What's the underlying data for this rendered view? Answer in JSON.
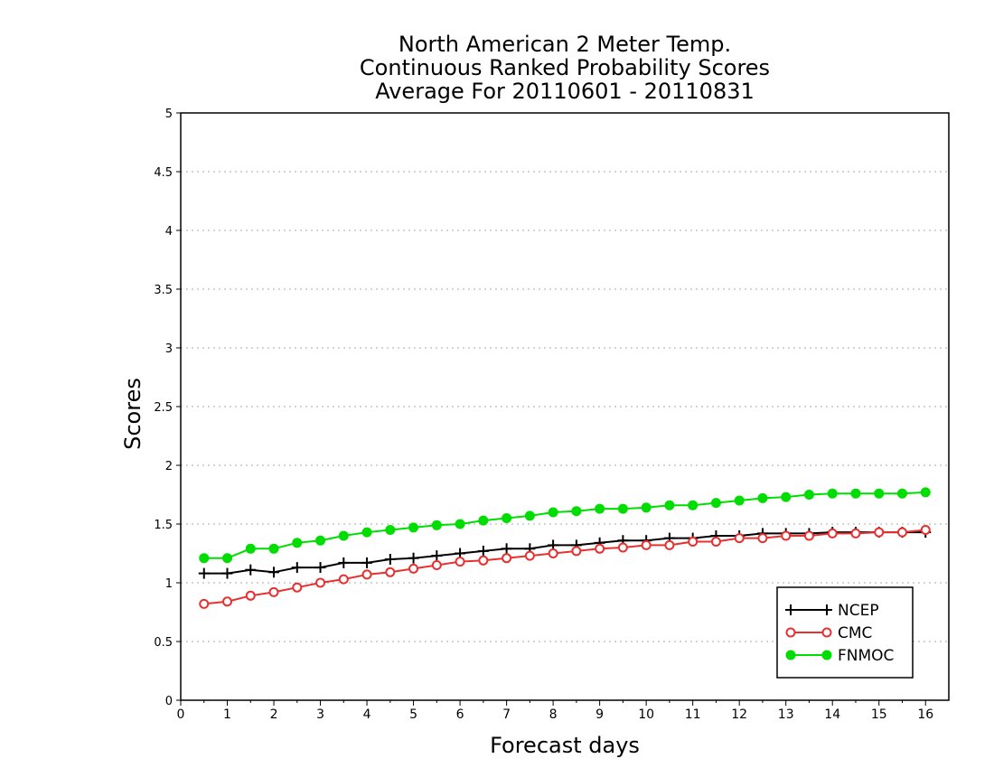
{
  "chart_data": {
    "type": "line",
    "title": [
      "North American 2 Meter Temp.",
      "Continuous Ranked Probability Scores",
      "Average For 20110601 - 20110831"
    ],
    "xlabel": "Forecast days",
    "ylabel": "Scores",
    "xlim": [
      0,
      16.5
    ],
    "ylim": [
      0,
      5
    ],
    "xticks": [
      0,
      1,
      2,
      3,
      4,
      5,
      6,
      7,
      8,
      9,
      10,
      11,
      12,
      13,
      14,
      15,
      16
    ],
    "xtick_labels": [
      "0",
      "1",
      "2",
      "3",
      "4",
      "5",
      "6",
      "7",
      "8",
      "9",
      "10",
      "11",
      "12",
      "13",
      "14",
      "15",
      "16"
    ],
    "yticks": [
      0,
      0.5,
      1,
      1.5,
      2,
      2.5,
      3,
      3.5,
      4,
      4.5,
      5
    ],
    "ytick_labels": [
      "0",
      "0.5",
      "1",
      "1.5",
      "2",
      "2.5",
      "3",
      "3.5",
      "4",
      "4.5",
      "5"
    ],
    "grid": true,
    "legend_position": "bottom-right",
    "x": [
      0.5,
      1,
      1.5,
      2,
      2.5,
      3,
      3.5,
      4,
      4.5,
      5,
      5.5,
      6,
      6.5,
      7,
      7.5,
      8,
      8.5,
      9,
      9.5,
      10,
      10.5,
      11,
      11.5,
      12,
      12.5,
      13,
      13.5,
      14,
      14.5,
      15,
      15.5,
      16
    ],
    "series": [
      {
        "name": "NCEP",
        "color": "#000000",
        "marker": "plus",
        "values": [
          1.08,
          1.08,
          1.11,
          1.09,
          1.13,
          1.13,
          1.17,
          1.17,
          1.2,
          1.21,
          1.23,
          1.25,
          1.27,
          1.29,
          1.29,
          1.32,
          1.32,
          1.34,
          1.36,
          1.36,
          1.38,
          1.38,
          1.4,
          1.4,
          1.42,
          1.42,
          1.42,
          1.43,
          1.43,
          1.43,
          1.43,
          1.43
        ]
      },
      {
        "name": "CMC",
        "color": "#e83030",
        "marker": "open-circle",
        "values": [
          0.82,
          0.84,
          0.89,
          0.92,
          0.96,
          1.0,
          1.03,
          1.07,
          1.09,
          1.12,
          1.15,
          1.18,
          1.19,
          1.21,
          1.23,
          1.25,
          1.27,
          1.29,
          1.3,
          1.32,
          1.32,
          1.35,
          1.35,
          1.38,
          1.38,
          1.4,
          1.4,
          1.42,
          1.42,
          1.43,
          1.43,
          1.45
        ]
      },
      {
        "name": "FNMOC",
        "color": "#00dd00",
        "marker": "filled-circle",
        "values": [
          1.21,
          1.21,
          1.29,
          1.29,
          1.34,
          1.36,
          1.4,
          1.43,
          1.45,
          1.47,
          1.49,
          1.5,
          1.53,
          1.55,
          1.57,
          1.6,
          1.61,
          1.63,
          1.63,
          1.64,
          1.66,
          1.66,
          1.68,
          1.7,
          1.72,
          1.73,
          1.75,
          1.76,
          1.76,
          1.76,
          1.76,
          1.77
        ]
      }
    ]
  }
}
